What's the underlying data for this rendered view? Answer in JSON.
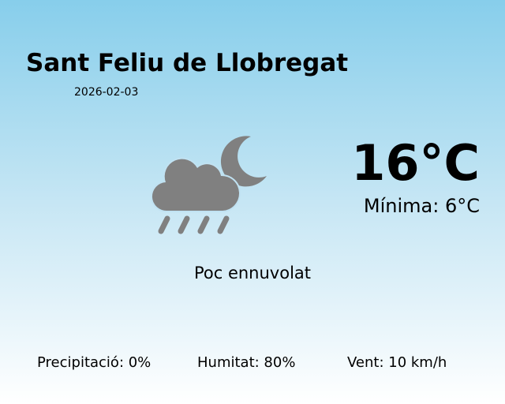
{
  "location": {
    "city": "Sant Feliu de Llobregat",
    "date": "2026-02-03"
  },
  "current": {
    "temperature": "16°C",
    "minimum": "Mínima: 6°C",
    "condition": "Poc ennuvolat",
    "icon": "cloud-rain-moon-icon",
    "icon_color": "#808080"
  },
  "stats": {
    "precipitation": "Precipitació: 0%",
    "humidity": "Humitat: 80%",
    "wind": "Vent: 10 km/h"
  },
  "colors": {
    "sky_top": "#87ceeb",
    "sky_bottom": "#ffffff"
  }
}
